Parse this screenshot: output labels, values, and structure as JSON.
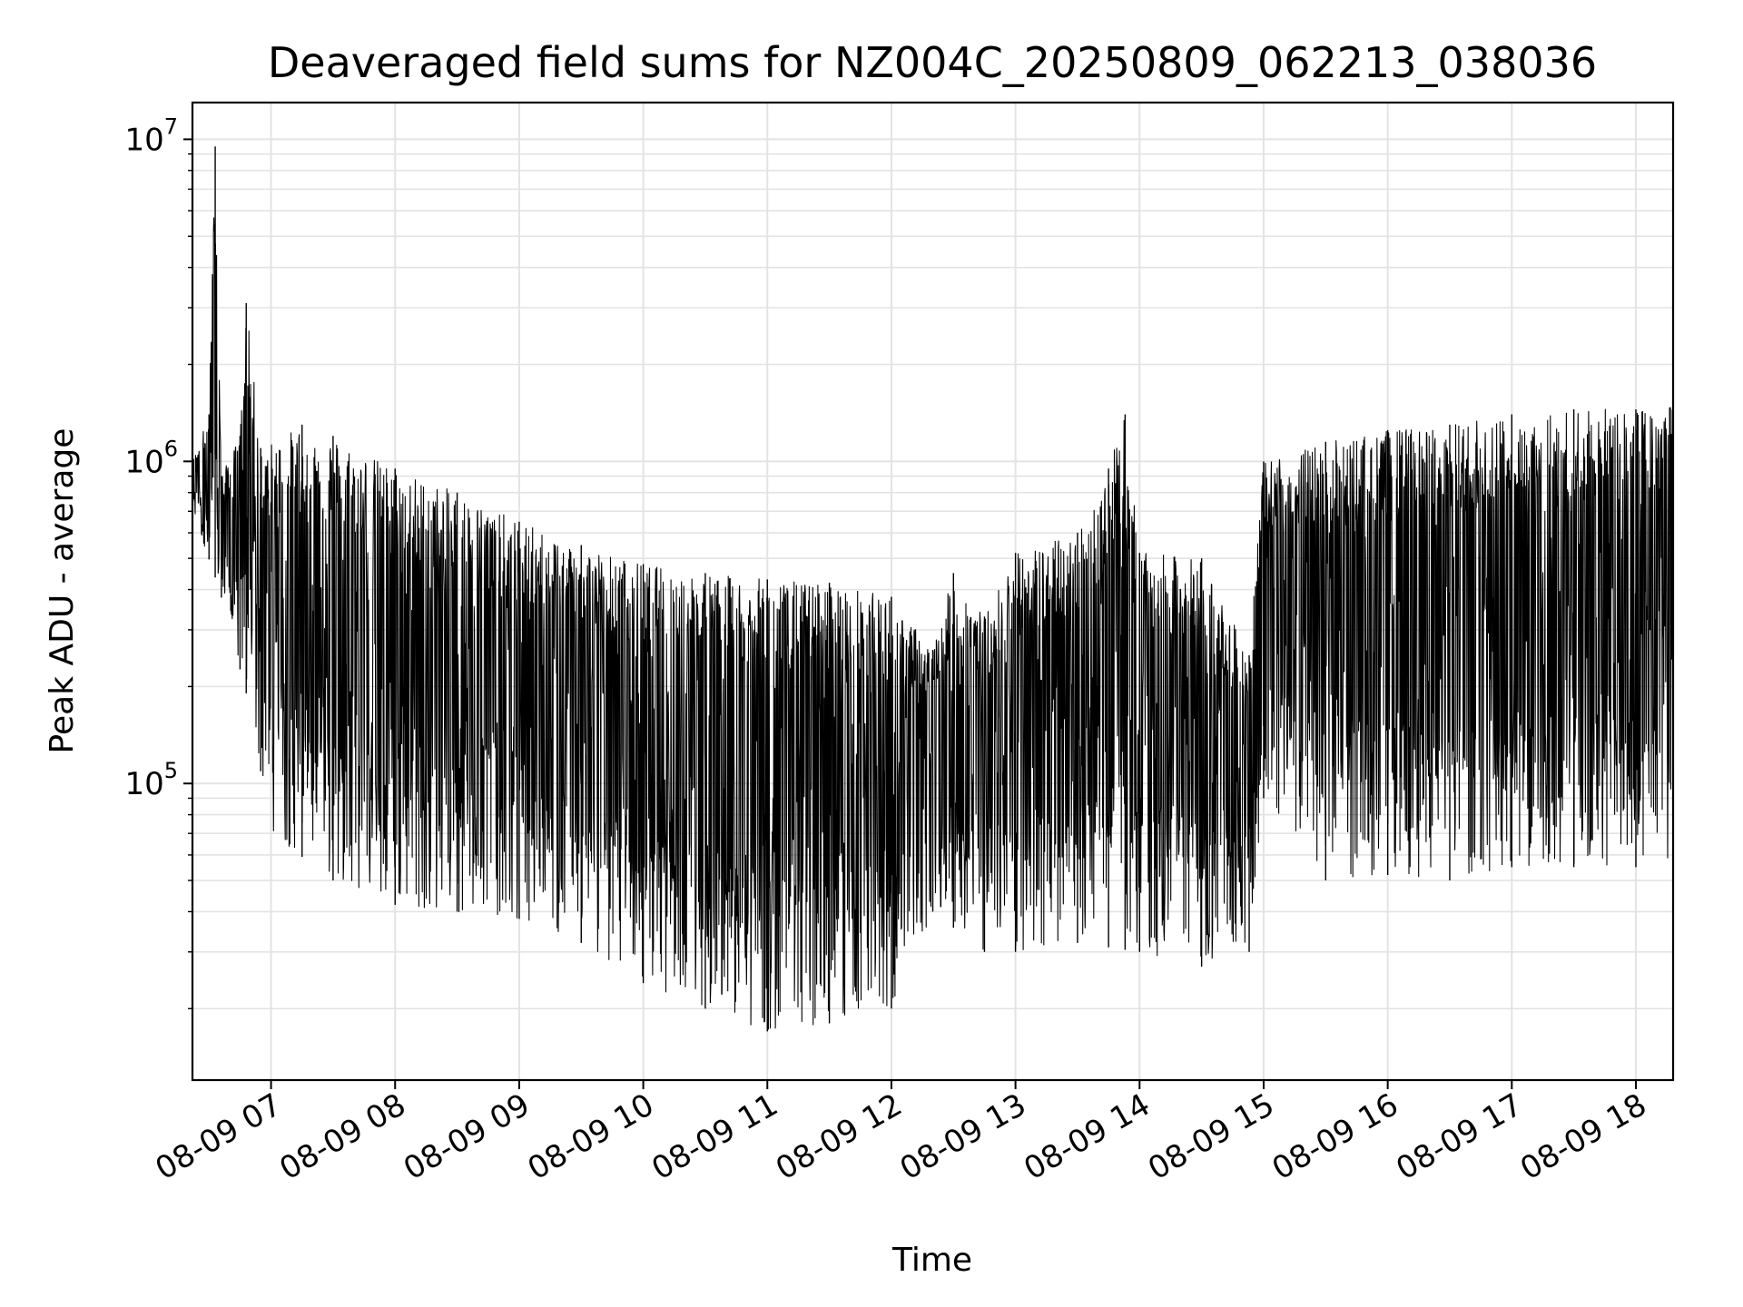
{
  "chart_data": {
    "type": "line",
    "title": "Deaveraged field sums for NZ004C_20250809_062213_038036",
    "xlabel": "Time",
    "ylabel": "Peak ADU - average",
    "yscale": "log",
    "grid": true,
    "xlim": [
      "08-09 06:22",
      "08-09 18:18"
    ],
    "ylim": [
      12000,
      13000000
    ],
    "x_tick_labels": [
      "08-09 07",
      "08-09 08",
      "08-09 09",
      "08-09 10",
      "08-09 11",
      "08-09 12",
      "08-09 13",
      "08-09 14",
      "08-09 15",
      "08-09 16",
      "08-09 17",
      "08-09 18"
    ],
    "y_tick_labels": [
      {
        "base": "10",
        "exp": "5",
        "value": 100000
      },
      {
        "base": "10",
        "exp": "6",
        "value": 1000000
      },
      {
        "base": "10",
        "exp": "7",
        "value": 10000000
      }
    ],
    "series": [
      {
        "color": "#000000",
        "envelope_upper": [
          {
            "x": "06:22",
            "y": 1000000
          },
          {
            "x": "06:30",
            "y": 1400000
          },
          {
            "x": "06:33",
            "y": 9500000
          },
          {
            "x": "06:36",
            "y": 900000
          },
          {
            "x": "06:45",
            "y": 1200000
          },
          {
            "x": "06:48",
            "y": 3100000
          },
          {
            "x": "06:55",
            "y": 1100000
          },
          {
            "x": "07:15",
            "y": 1300000
          },
          {
            "x": "07:30",
            "y": 1200000
          },
          {
            "x": "08:00",
            "y": 950000
          },
          {
            "x": "08:30",
            "y": 800000
          },
          {
            "x": "09:00",
            "y": 650000
          },
          {
            "x": "09:30",
            "y": 550000
          },
          {
            "x": "10:00",
            "y": 480000
          },
          {
            "x": "10:30",
            "y": 450000
          },
          {
            "x": "11:00",
            "y": 430000
          },
          {
            "x": "11:30",
            "y": 420000
          },
          {
            "x": "12:00",
            "y": 380000
          },
          {
            "x": "12:20",
            "y": 260000
          },
          {
            "x": "12:30",
            "y": 450000
          },
          {
            "x": "12:45",
            "y": 330000
          },
          {
            "x": "13:00",
            "y": 520000
          },
          {
            "x": "13:30",
            "y": 600000
          },
          {
            "x": "13:45",
            "y": 950000
          },
          {
            "x": "13:53",
            "y": 1400000
          },
          {
            "x": "14:00",
            "y": 520000
          },
          {
            "x": "14:30",
            "y": 500000
          },
          {
            "x": "14:53",
            "y": 250000
          },
          {
            "x": "15:00",
            "y": 1000000
          },
          {
            "x": "15:30",
            "y": 1150000
          },
          {
            "x": "16:00",
            "y": 1250000
          },
          {
            "x": "16:30",
            "y": 1300000
          },
          {
            "x": "17:00",
            "y": 1400000
          },
          {
            "x": "17:30",
            "y": 1450000
          },
          {
            "x": "18:00",
            "y": 1450000
          },
          {
            "x": "18:18",
            "y": 1500000
          }
        ],
        "envelope_lower": [
          {
            "x": "06:22",
            "y": 700000
          },
          {
            "x": "06:35",
            "y": 400000
          },
          {
            "x": "06:50",
            "y": 170000
          },
          {
            "x": "07:00",
            "y": 70000
          },
          {
            "x": "07:30",
            "y": 50000
          },
          {
            "x": "08:00",
            "y": 42000
          },
          {
            "x": "08:30",
            "y": 40000
          },
          {
            "x": "09:00",
            "y": 38000
          },
          {
            "x": "09:30",
            "y": 32000
          },
          {
            "x": "10:00",
            "y": 24000
          },
          {
            "x": "10:30",
            "y": 20000
          },
          {
            "x": "11:00",
            "y": 17000
          },
          {
            "x": "11:30",
            "y": 18000
          },
          {
            "x": "12:00",
            "y": 20000
          },
          {
            "x": "12:20",
            "y": 40000
          },
          {
            "x": "12:45",
            "y": 30000
          },
          {
            "x": "13:00",
            "y": 30000
          },
          {
            "x": "13:30",
            "y": 32000
          },
          {
            "x": "14:00",
            "y": 30000
          },
          {
            "x": "14:30",
            "y": 27000
          },
          {
            "x": "14:53",
            "y": 30000
          },
          {
            "x": "15:00",
            "y": 90000
          },
          {
            "x": "15:30",
            "y": 50000
          },
          {
            "x": "16:00",
            "y": 52000
          },
          {
            "x": "16:30",
            "y": 50000
          },
          {
            "x": "17:00",
            "y": 55000
          },
          {
            "x": "17:30",
            "y": 55000
          },
          {
            "x": "18:00",
            "y": 55000
          },
          {
            "x": "18:18",
            "y": 58000
          }
        ]
      }
    ]
  }
}
